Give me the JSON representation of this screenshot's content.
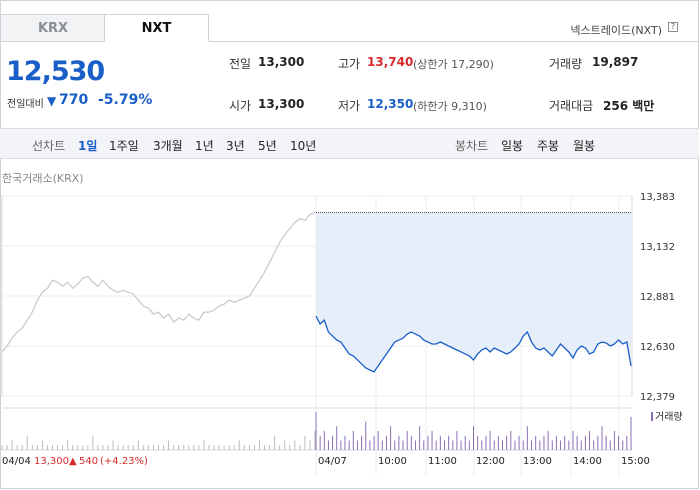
{
  "tabs": [
    {
      "label": "KRX"
    },
    {
      "label": "NXT"
    }
  ],
  "venue_label": "넥스트레이드(NXT)",
  "help_icon": "?",
  "quote": {
    "price": "12,530",
    "change_label": "전일대비",
    "change_value": "770",
    "change_pct": "-5.79%",
    "change_direction": "down"
  },
  "stats": {
    "prev_close": {
      "label": "전일",
      "value": "13,300"
    },
    "open": {
      "label": "시가",
      "value": "13,300"
    },
    "high": {
      "label": "고가",
      "value": "13,740",
      "sub": "(상한가 17,290)"
    },
    "low": {
      "label": "저가",
      "value": "12,350",
      "sub": "(하한가 9,310)"
    },
    "volume": {
      "label": "거래량",
      "value": "19,897"
    },
    "amount": {
      "label": "거래대금",
      "value": "256 백만"
    }
  },
  "period_bar": {
    "line_label": "선차트",
    "line_periods": [
      "1일",
      "1주일",
      "3개월",
      "1년",
      "3년",
      "5년",
      "10년"
    ],
    "selected_period": "1일",
    "candle_label": "봉차트",
    "candle_periods": [
      "일봉",
      "주봉",
      "월봉"
    ]
  },
  "exchange_label": "한국거래소(KRX)",
  "colors": {
    "accent_blue": "#1a5ec8",
    "up_red": "#d82a2a",
    "area_fill": "#e6eefa",
    "prev_line": "#c8c8c8"
  },
  "chart_data": {
    "type": "line",
    "y_ticks": [
      "13,383",
      "13,132",
      "12,881",
      "12,630",
      "12,379"
    ],
    "ylim": [
      12379,
      13383
    ],
    "x_ticks": [
      "04/07",
      "10:00",
      "11:00",
      "12:00",
      "13:00",
      "14:00",
      "15:00"
    ],
    "prev_day": {
      "date": "04/04",
      "close": "13,300",
      "change": "540",
      "change_pct": "(+4.23%)",
      "values": [
        12600,
        12630,
        12670,
        12700,
        12720,
        12760,
        12800,
        12860,
        12900,
        12920,
        12960,
        12950,
        12930,
        12950,
        12920,
        12940,
        12970,
        12980,
        12950,
        12930,
        12960,
        12930,
        12910,
        12900,
        12910,
        12900,
        12890,
        12860,
        12830,
        12820,
        12790,
        12800,
        12770,
        12790,
        12750,
        12770,
        12760,
        12790,
        12770,
        12760,
        12800,
        12800,
        12810,
        12830,
        12840,
        12860,
        12850,
        12860,
        12870,
        12880,
        12920,
        12960,
        13000,
        13050,
        13100,
        13150,
        13190,
        13220,
        13250,
        13270,
        13260,
        13290,
        13300
      ]
    },
    "series": [
      {
        "name": "NXT",
        "values": [
          12780,
          12740,
          12760,
          12700,
          12680,
          12660,
          12650,
          12620,
          12590,
          12580,
          12560,
          12540,
          12520,
          12510,
          12500,
          12530,
          12560,
          12590,
          12620,
          12650,
          12660,
          12670,
          12690,
          12700,
          12690,
          12680,
          12660,
          12650,
          12640,
          12640,
          12650,
          12640,
          12630,
          12620,
          12610,
          12600,
          12590,
          12580,
          12560,
          12590,
          12610,
          12620,
          12600,
          12620,
          12610,
          12600,
          12590,
          12600,
          12620,
          12640,
          12680,
          12700,
          12650,
          12620,
          12610,
          12620,
          12600,
          12580,
          12610,
          12640,
          12620,
          12600,
          12570,
          12610,
          12630,
          12620,
          12590,
          12600,
          12640,
          12650,
          12645,
          12630,
          12640,
          12660,
          12640,
          12650,
          12530
        ]
      }
    ],
    "volume_label": "거래량",
    "prev_volume": [
      1,
      1,
      2,
      1,
      1,
      3,
      1,
      1,
      2,
      1,
      1,
      1,
      1,
      2,
      1,
      1,
      1,
      1,
      3,
      1,
      1,
      1,
      2,
      1,
      1,
      1,
      1,
      2,
      1,
      1,
      1,
      1,
      1,
      2,
      1,
      1,
      1,
      1,
      1,
      1,
      2,
      1,
      1,
      1,
      1,
      1,
      1,
      2,
      1,
      1,
      1,
      2,
      1,
      1,
      3,
      1,
      2,
      1,
      2,
      1,
      3,
      2,
      4
    ],
    "nxt_volume": [
      8,
      3,
      4,
      2,
      3,
      5,
      2,
      3,
      2,
      4,
      2,
      3,
      6,
      2,
      3,
      4,
      2,
      3,
      5,
      2,
      3,
      2,
      4,
      3,
      2,
      5,
      2,
      3,
      4,
      2,
      3,
      2,
      3,
      2,
      4,
      2,
      3,
      2,
      5,
      3,
      2,
      3,
      4,
      2,
      3,
      2,
      3,
      4,
      2,
      3,
      2,
      5,
      2,
      3,
      2,
      3,
      4,
      2,
      3,
      2,
      3,
      2,
      4,
      3,
      2,
      3,
      4,
      2,
      3,
      5,
      3,
      2,
      4,
      3,
      2,
      3,
      7
    ]
  }
}
